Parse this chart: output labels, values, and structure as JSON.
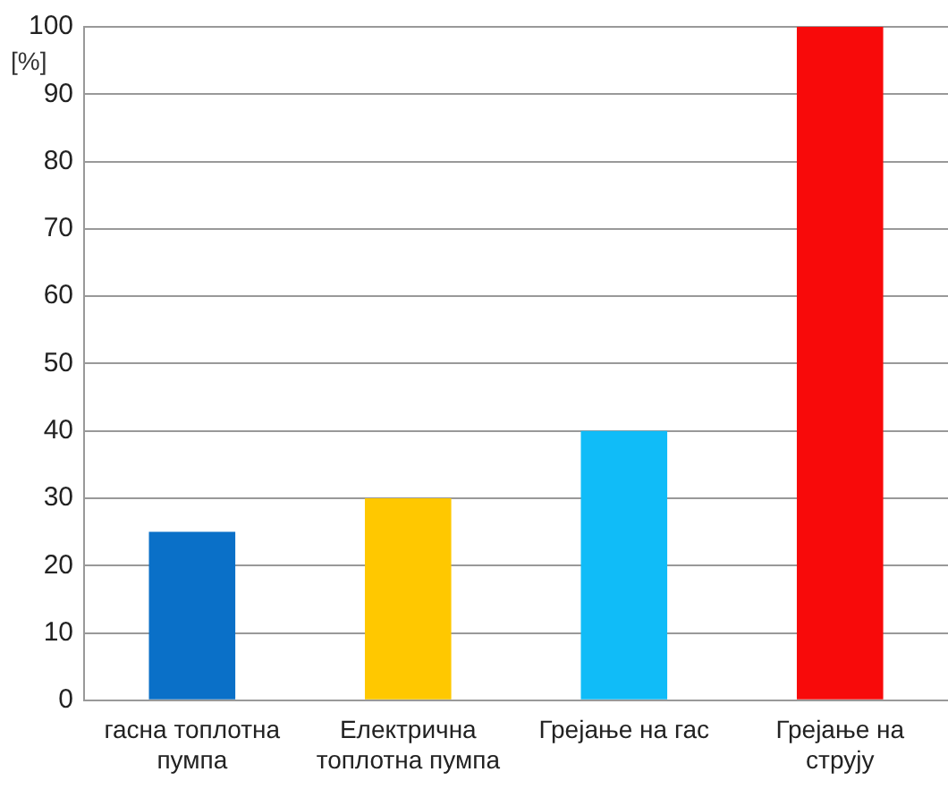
{
  "chart_data": {
    "type": "bar",
    "ylabel": "[%]",
    "categories": [
      "гасна топлотна пумпа",
      "Електрична топлотна пумпа",
      "Грејање на гас",
      "Грејање на струју"
    ],
    "values": [
      25,
      30,
      40,
      100
    ],
    "colors": [
      "#0a70c8",
      "#ffc800",
      "#10bcf8",
      "#f80a0a"
    ],
    "ylim": [
      0,
      100
    ],
    "yticks": [
      0,
      10,
      20,
      30,
      40,
      50,
      60,
      70,
      80,
      90,
      100
    ],
    "grid": "y",
    "legend": false
  }
}
